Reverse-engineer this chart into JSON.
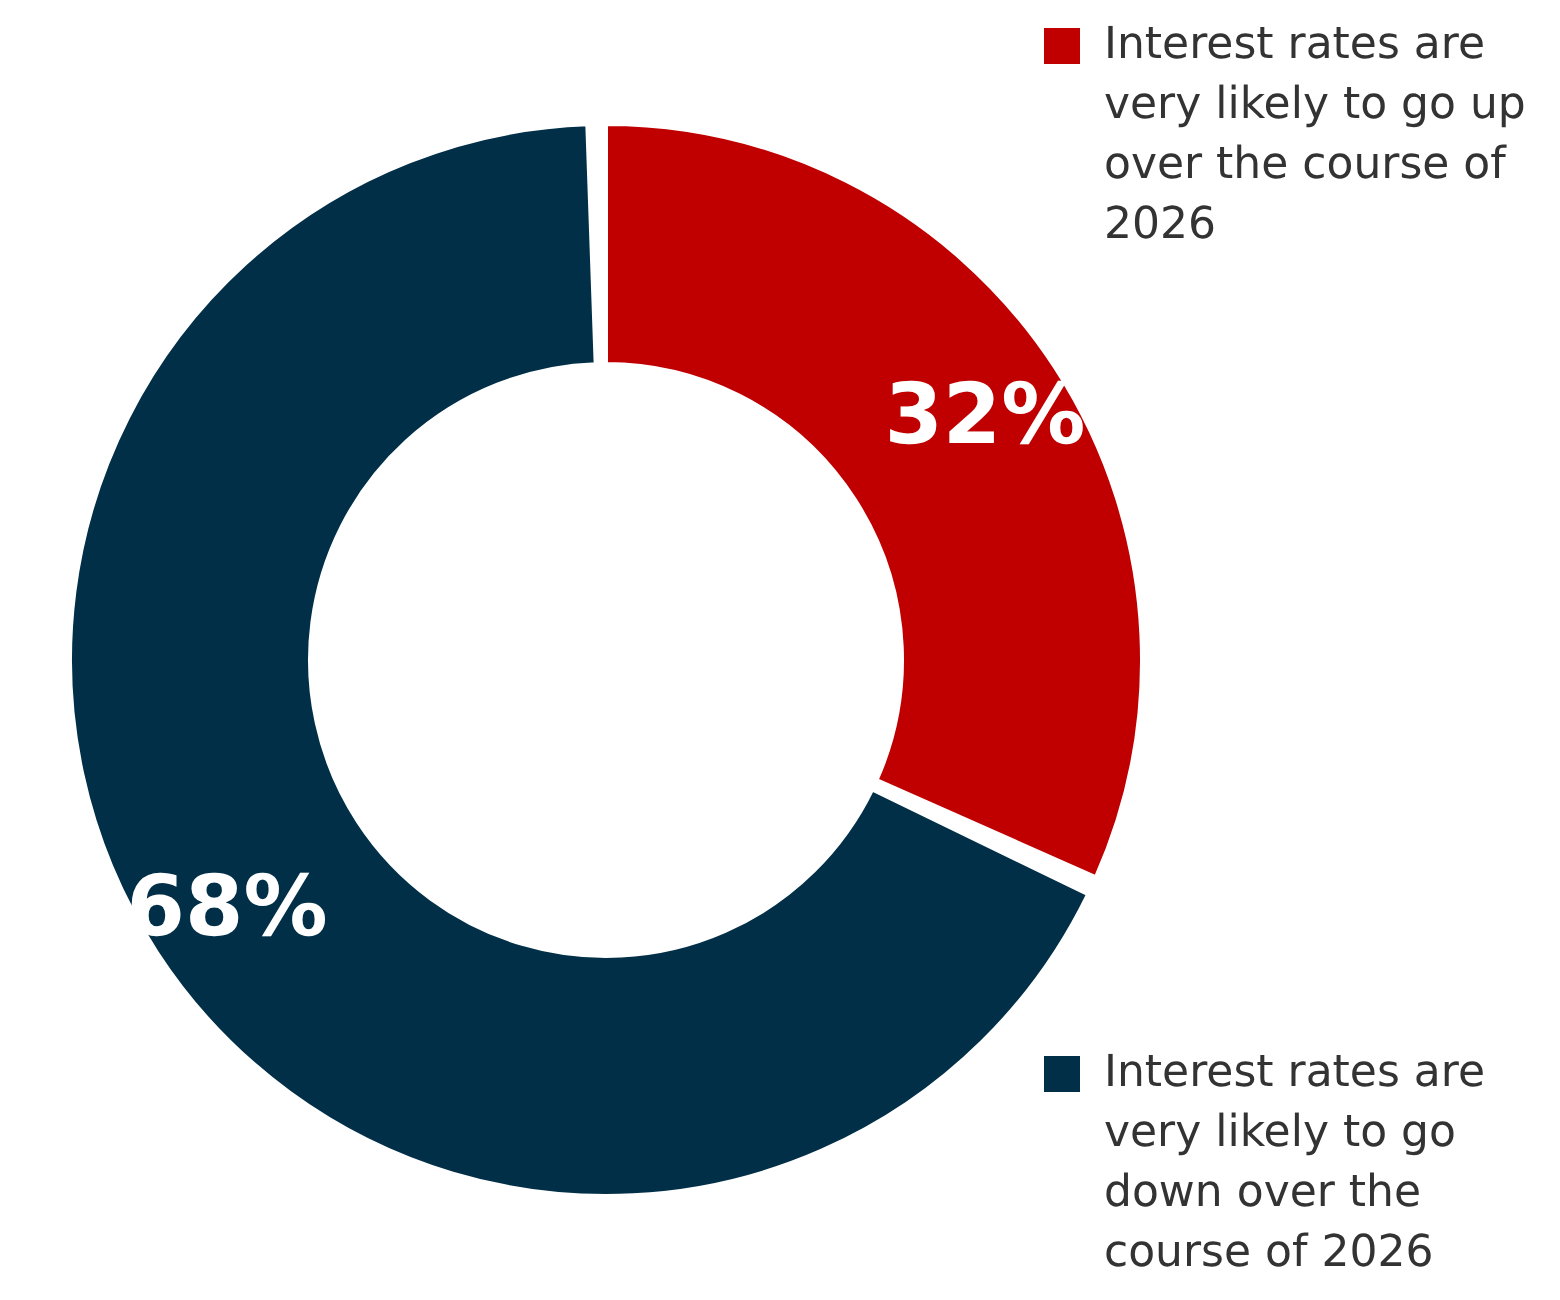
{
  "chart_data": {
    "type": "donut",
    "categories": [
      "Interest rates are very likely to go up over the course of 2026",
      "Interest rates are very likely to go down over the course of 2026"
    ],
    "values": [
      32,
      68
    ],
    "colors": [
      "#c00000",
      "#002f47"
    ],
    "value_labels": [
      "32%",
      "68%"
    ],
    "legend": "right"
  }
}
